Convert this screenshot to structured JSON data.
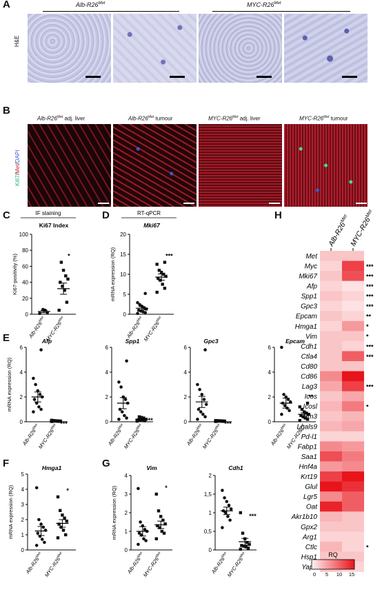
{
  "panelA": {
    "letter": "A",
    "group1": "Alb-R26",
    "group2": "MYC-R26",
    "sup": "Met",
    "row_label": "H&E"
  },
  "panelB": {
    "letter": "B",
    "t1": "Alb-R26",
    "t1b": " adj. liver",
    "t2": "Alb-R26",
    "t2b": " tumour",
    "t3": "MYC-R26",
    "t3b": " adj. liver",
    "t4": "MYC-R26",
    "t4b": " tumour",
    "sup": "Met",
    "stain_ki67": "Ki67",
    "stain_met": "Met",
    "stain_dapi": "DAPI"
  },
  "colors": {
    "he_bg": "#c9cbe6",
    "if_red": "#b01e2c",
    "if_blue": "#3b5bd6",
    "if_green": "#48d8a0",
    "heat_low": "#fff1f1",
    "heat_high": "#e8141c"
  },
  "chart_data": [
    {
      "id": "C",
      "type": "scatter",
      "header": "IF staining",
      "title": "Ki67 Index",
      "ylabel": "Ki67-positivity (%)",
      "ylim": [
        0,
        100
      ],
      "yticks": [
        0,
        20,
        40,
        60,
        80,
        100
      ],
      "categories": [
        "Alb-R26Met",
        "MYC-R26Met"
      ],
      "groups": [
        {
          "name": "Alb-R26Met",
          "values": [
            1,
            2,
            5,
            6
          ],
          "mean": 3.5,
          "sem": 1.5
        },
        {
          "name": "MYC-R26Met",
          "values": [
            5,
            15,
            30,
            35,
            40,
            44,
            48,
            55,
            65
          ],
          "mean": 32,
          "sem": 7
        }
      ],
      "significance": [
        "",
        "*"
      ]
    },
    {
      "id": "D",
      "type": "scatter",
      "header": "RT-qPCR",
      "title": "Mki67",
      "ylabel": "mRNA expression (RQ)",
      "ylim": [
        0,
        20
      ],
      "yticks": [
        0,
        5,
        10,
        15,
        20
      ],
      "categories": [
        "Alb-R26Met",
        "MYC-R26Met"
      ],
      "groups": [
        {
          "name": "Alb-R26Met",
          "values": [
            0.2,
            0.4,
            0.6,
            0.8,
            1.0,
            1.3,
            1.6,
            2.0,
            2.4,
            2.9,
            5.2
          ],
          "mean": 1.5,
          "sem": 0.4
        },
        {
          "name": "MYC-R26Met",
          "values": [
            5.5,
            6.5,
            7.5,
            8.5,
            9.0,
            9.5,
            10.0,
            10.5,
            11.0,
            12.5,
            13.0
          ],
          "mean": 9.3,
          "sem": 0.8
        },
        {
          "name": "",
          "values": [],
          "mean": 0,
          "sem": 0
        }
      ],
      "significance": [
        "",
        "***"
      ]
    },
    {
      "id": "E1",
      "type": "scatter",
      "title": "Afp",
      "ylabel": "mRNA expression (RQ)",
      "ylim": [
        0,
        6
      ],
      "yticks": [
        0,
        2,
        4,
        6
      ],
      "categories": [
        "Alb-R26Met",
        "MYC-R26Met"
      ],
      "groups": [
        {
          "name": "Alb-R26Met",
          "values": [
            0.8,
            1.0,
            1.2,
            1.5,
            1.8,
            2.0,
            2.2,
            2.5,
            3.0,
            3.5,
            5.8
          ],
          "mean": 2.0,
          "sem": 0.4
        },
        {
          "name": "MYC-R26Met",
          "values": [
            0.02,
            0.03,
            0.04,
            0.05,
            0.05,
            0.06,
            0.07,
            0.08,
            0.1,
            0.12
          ],
          "mean": 0.05,
          "sem": 0.01
        }
      ],
      "significance": [
        "",
        "***"
      ]
    },
    {
      "id": "E2",
      "type": "scatter",
      "title": "Spp1",
      "ylim": [
        0,
        6
      ],
      "yticks": [
        0,
        2,
        4,
        6
      ],
      "categories": [
        "Alb-R26Met",
        "MYC-R26Met"
      ],
      "groups": [
        {
          "name": "Alb-R26Met",
          "values": [
            0.2,
            0.3,
            0.5,
            0.8,
            1.0,
            1.5,
            1.8,
            2.0,
            2.8,
            3.2,
            4.9
          ],
          "mean": 1.5,
          "sem": 0.45
        },
        {
          "name": "MYC-R26Met",
          "values": [
            0.05,
            0.08,
            0.1,
            0.12,
            0.15,
            0.2,
            0.3,
            0.35,
            0.4,
            0.1
          ],
          "mean": 0.2,
          "sem": 0.04
        }
      ],
      "significance": [
        "",
        "***"
      ]
    },
    {
      "id": "E3",
      "type": "scatter",
      "title": "Gpc3",
      "ylim": [
        0,
        6
      ],
      "yticks": [
        0,
        2,
        4,
        6
      ],
      "categories": [
        "Alb-R26Met",
        "MYC-R26Met"
      ],
      "groups": [
        {
          "name": "Alb-R26Met",
          "values": [
            0.2,
            0.4,
            0.6,
            0.8,
            1.0,
            1.4,
            1.8,
            2.2,
            2.6,
            3.0,
            5.8
          ],
          "mean": 1.6,
          "sem": 0.45
        },
        {
          "name": "MYC-R26Met",
          "values": [
            0.02,
            0.03,
            0.04,
            0.05,
            0.05,
            0.06,
            0.07,
            0.08,
            0.09,
            0.1
          ],
          "mean": 0.05,
          "sem": 0.01
        }
      ],
      "significance": [
        "",
        "***"
      ]
    },
    {
      "id": "E4",
      "type": "scatter",
      "title": "Epcam",
      "ylim": [
        0,
        6
      ],
      "yticks": [
        0,
        2,
        4,
        6
      ],
      "categories": [
        "Alb-R26Met",
        "MYC-R26Met"
      ],
      "groups": [
        {
          "name": "Alb-R26Met",
          "values": [
            0.6,
            0.9,
            1.1,
            1.3,
            1.5,
            1.6,
            1.8,
            2.0,
            2.2,
            6.0
          ],
          "mean": 1.5,
          "sem": 0.4
        },
        {
          "name": "MYC-R26Met",
          "values": [
            0.1,
            0.2,
            0.3,
            0.4,
            0.5,
            0.6,
            0.7,
            0.8,
            1.0,
            1.2,
            1.5
          ],
          "mean": 0.6,
          "sem": 0.12
        }
      ],
      "significance": [
        "",
        "**"
      ]
    },
    {
      "id": "F",
      "type": "scatter",
      "title": "Hmga1",
      "ylabel": "mRNA expression (RQ)",
      "ylim": [
        0,
        5
      ],
      "yticks": [
        0,
        1,
        2,
        3,
        4,
        5
      ],
      "categories": [
        "Alb-R26Met",
        "MYC-R26Met"
      ],
      "groups": [
        {
          "name": "Alb-R26Met",
          "values": [
            0.3,
            0.5,
            0.7,
            0.9,
            1.1,
            1.3,
            1.5,
            1.7,
            2.0,
            4.1
          ],
          "mean": 1.25,
          "sem": 0.3
        },
        {
          "name": "MYC-R26Met",
          "values": [
            0.8,
            1.0,
            1.3,
            1.5,
            1.7,
            1.9,
            2.1,
            2.3,
            2.6,
            3.5
          ],
          "mean": 1.75,
          "sem": 0.25
        }
      ],
      "significance": [
        "",
        "*"
      ]
    },
    {
      "id": "G1",
      "type": "scatter",
      "title": "Vim",
      "ylabel": "mRNA expression (RQ)",
      "ylim": [
        0,
        4
      ],
      "yticks": [
        0,
        1,
        2,
        3,
        4
      ],
      "categories": [
        "Alb-R26Met",
        "MYC-R26Met"
      ],
      "groups": [
        {
          "name": "Alb-R26Met",
          "values": [
            0.3,
            0.5,
            0.6,
            0.8,
            0.9,
            1.0,
            1.1,
            1.3,
            1.5,
            3.3
          ],
          "mean": 1.0,
          "sem": 0.25
        },
        {
          "name": "MYC-R26Met",
          "values": [
            0.6,
            0.9,
            1.0,
            1.2,
            1.3,
            1.4,
            1.6,
            1.8,
            2.1,
            3.0
          ],
          "mean": 1.35,
          "sem": 0.2
        }
      ],
      "significance": [
        "",
        "*"
      ]
    },
    {
      "id": "G2",
      "type": "scatter",
      "title": "Cdh1",
      "ylim": [
        0,
        2
      ],
      "yticks": [
        0,
        0.5,
        1,
        1.5,
        2
      ],
      "ytick_labels": [
        "0",
        "0,5",
        "1",
        "1,5",
        "2"
      ],
      "categories": [
        "Alb-R26Met",
        "MYC-R26Met"
      ],
      "groups": [
        {
          "name": "Alb-R26Met",
          "values": [
            0.6,
            0.8,
            0.9,
            1.0,
            1.05,
            1.1,
            1.2,
            1.3,
            1.4,
            1.6
          ],
          "mean": 1.05,
          "sem": 0.1
        },
        {
          "name": "MYC-R26Met",
          "values": [
            0.02,
            0.05,
            0.08,
            0.1,
            0.12,
            0.15,
            0.2,
            0.3,
            0.45,
            1.0
          ],
          "mean": 0.22,
          "sem": 0.09
        }
      ],
      "significance": [
        "",
        "***"
      ]
    },
    {
      "id": "H",
      "type": "heatmap",
      "columns": [
        "Alb-R26Met",
        "MYC-R26Met"
      ],
      "rows": [
        "Met",
        "Myc",
        "Mki67",
        "Afp",
        "Spp1",
        "Gpc3",
        "Epcam",
        "Hmga1",
        "Vim",
        "Cdh1",
        "Ctla4",
        "Cd80",
        "Cd86",
        "Lag3",
        "Icos",
        "Icosl",
        "Tim3",
        "Lgals9",
        "Pd-l1",
        "Fabp1",
        "Saa1",
        "Hnf4a",
        "Krt19",
        "Glul",
        "Lgr5",
        "Oat",
        "Akr1b10",
        "Gpx2",
        "Arg1",
        "Ctlc",
        "Hsp1",
        "Yap1"
      ],
      "values": [
        [
          3,
          3
        ],
        [
          2,
          12
        ],
        [
          3,
          11
        ],
        [
          2,
          1
        ],
        [
          3,
          2
        ],
        [
          2,
          1
        ],
        [
          3,
          2
        ],
        [
          2,
          6
        ],
        [
          3,
          3
        ],
        [
          3,
          2
        ],
        [
          3,
          10
        ],
        [
          3,
          3
        ],
        [
          7,
          16
        ],
        [
          5,
          12
        ],
        [
          3,
          5
        ],
        [
          4,
          8
        ],
        [
          3,
          4
        ],
        [
          4,
          5
        ],
        [
          2,
          2
        ],
        [
          7,
          6
        ],
        [
          11,
          8
        ],
        [
          6,
          7
        ],
        [
          12,
          15
        ],
        [
          15,
          13
        ],
        [
          7,
          10
        ],
        [
          14,
          10
        ],
        [
          4,
          3
        ],
        [
          3,
          3
        ],
        [
          2,
          2
        ],
        [
          4,
          2
        ],
        [
          3,
          3
        ],
        [
          3,
          2
        ]
      ],
      "significance": [
        "",
        "***",
        "***",
        "***",
        "***",
        "***",
        "**",
        "*",
        "*",
        "***",
        "***",
        "",
        "",
        "***",
        "",
        "*",
        "",
        "",
        "",
        "",
        "",
        "",
        "",
        "",
        "",
        "",
        "",
        "",
        "",
        "*",
        "",
        ""
      ],
      "legend_title": "RQ",
      "legend_ticks": [
        "0",
        "5",
        "10",
        "15"
      ],
      "legend_range": [
        0,
        15
      ]
    }
  ]
}
